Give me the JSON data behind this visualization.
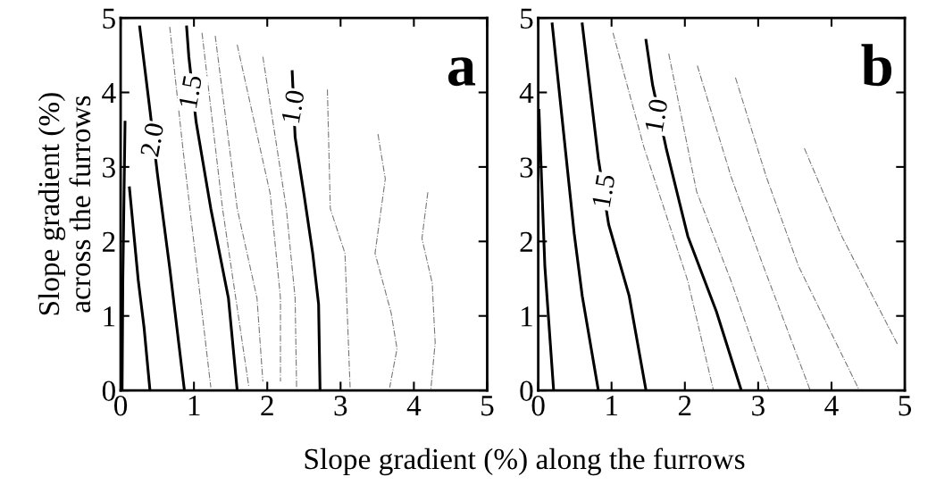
{
  "chart_data": [
    {
      "type": "line",
      "xlabel": "Slope gradient (%) along the furrows",
      "ylabel": "Slope gradient (%)\nacross the furrows",
      "xlim": [
        0,
        5
      ],
      "ylim": [
        0,
        5
      ],
      "xticks": [
        0,
        1,
        2,
        3,
        4,
        5
      ],
      "yticks": [
        0,
        1,
        2,
        3,
        4,
        5
      ],
      "grid": false,
      "legend": false,
      "annotations": [
        {
          "text": "2.0",
          "x": 0.46,
          "y": 3.36
        },
        {
          "text": "1.5",
          "x": 0.98,
          "y": 4.0
        },
        {
          "text": "1.0",
          "x": 2.38,
          "y": 3.8
        },
        "a"
      ],
      "series": [
        {
          "color": "#000000",
          "line_style": "solid",
          "x": [
            0.06,
            0.03,
            0.02
          ],
          "values": [
            3.6,
            1.5,
            0
          ]
        },
        {
          "color": "#000000",
          "line_style": "solid",
          "x": [
            0.12,
            0.24,
            0.32,
            0.4
          ],
          "values": [
            2.72,
            1.48,
            0.84,
            0
          ]
        },
        {
          "color": "#000000",
          "line_style": "solid",
          "x": [
            0.26,
            0.4,
            0.5,
            0.67,
            0.87
          ],
          "values": [
            4.88,
            3.76,
            2.92,
            1.64,
            0
          ]
        },
        {
          "color": "#777777",
          "line_style": "dashed",
          "x": [
            0.67,
            0.85,
            1.23
          ],
          "values": [
            4.88,
            3.24,
            0.04
          ]
        },
        {
          "color": "#777777",
          "line_style": "dashed",
          "x": [
            1.11,
            1.39,
            1.75
          ],
          "values": [
            4.8,
            2.44,
            0.04
          ]
        },
        {
          "color": "#000000",
          "line_style": "solid",
          "x": [
            0.9,
            0.93,
            1.03,
            1.23,
            1.47,
            1.59
          ],
          "values": [
            4.88,
            4.48,
            3.6,
            2.44,
            1.24,
            0
          ]
        },
        {
          "color": "#777777",
          "line_style": "dashed",
          "x": [
            1.29,
            1.59,
            1.86,
            1.94
          ],
          "values": [
            4.76,
            2.44,
            1.24,
            0.12
          ]
        },
        {
          "color": "#777777",
          "line_style": "dashed",
          "x": [
            1.59,
            2.04,
            2.18,
            2.18
          ],
          "values": [
            4.64,
            2.64,
            1.24,
            0.12
          ]
        },
        {
          "color": "#777777",
          "line_style": "dashed",
          "x": [
            1.94,
            2.26,
            2.38,
            2.4
          ],
          "values": [
            4.48,
            2.44,
            1.24,
            0.04
          ]
        },
        {
          "color": "#000000",
          "line_style": "solid",
          "x": [
            2.34,
            2.38,
            2.5,
            2.62,
            2.7,
            2.72
          ],
          "values": [
            4.28,
            3.4,
            2.64,
            1.84,
            1.16,
            0
          ]
        },
        {
          "color": "#777777",
          "line_style": "dashed",
          "x": [
            2.82,
            2.86,
            3.06,
            3.13
          ],
          "values": [
            4.04,
            2.44,
            1.84,
            0.04
          ]
        },
        {
          "color": "#777777",
          "line_style": "dashed",
          "x": [
            3.51,
            3.61,
            3.47,
            3.69,
            3.77,
            3.67
          ],
          "values": [
            3.44,
            2.84,
            1.84,
            1.04,
            0.56,
            0.04
          ]
        },
        {
          "color": "#777777",
          "line_style": "dashed",
          "x": [
            4.19,
            4.11,
            4.25,
            4.29,
            4.23
          ],
          "values": [
            2.66,
            2.04,
            1.44,
            0.64,
            0
          ]
        }
      ]
    },
    {
      "type": "line",
      "xlim": [
        0,
        5
      ],
      "ylim": [
        0,
        5
      ],
      "xticks": [
        0,
        1,
        2,
        3,
        4,
        5
      ],
      "yticks": [
        0,
        1,
        2,
        3,
        4,
        5
      ],
      "grid": false,
      "legend": false,
      "annotations": [
        {
          "text": "1.5",
          "x": 0.92,
          "y": 2.67
        },
        {
          "text": "1.0",
          "x": 1.64,
          "y": 3.68
        },
        "b"
      ],
      "series": [
        {
          "color": "#000000",
          "line_style": "solid",
          "x": [
            0.01,
            0.09,
            0.21
          ],
          "values": [
            3.76,
            1.67,
            0
          ]
        },
        {
          "color": "#000000",
          "line_style": "solid",
          "x": [
            0.19,
            0.49,
            0.6,
            0.82
          ],
          "values": [
            4.92,
            2.11,
            1.27,
            0
          ]
        },
        {
          "color": "#000000",
          "line_style": "solid",
          "x": [
            0.6,
            0.82,
            0.96,
            1.24,
            1.47
          ],
          "values": [
            4.92,
            3.11,
            2.23,
            1.27,
            0
          ]
        },
        {
          "color": "#777777",
          "line_style": "dashed",
          "x": [
            1.02,
            1.44,
            2.04,
            2.39
          ],
          "values": [
            4.8,
            3.27,
            1.47,
            0
          ]
        },
        {
          "color": "#000000",
          "line_style": "solid",
          "x": [
            1.47,
            1.56,
            1.75,
            2.04,
            2.43,
            2.77
          ],
          "values": [
            4.7,
            4.1,
            3.23,
            2.07,
            1.06,
            0
          ]
        },
        {
          "color": "#777777",
          "line_style": "dashed",
          "x": [
            1.78,
            2.16,
            2.63,
            3.15
          ],
          "values": [
            4.52,
            2.67,
            1.47,
            0
          ]
        },
        {
          "color": "#777777",
          "line_style": "dashed",
          "x": [
            2.17,
            2.63,
            3.07,
            3.71
          ],
          "values": [
            4.36,
            2.87,
            1.67,
            0
          ]
        },
        {
          "color": "#777777",
          "line_style": "dashed",
          "x": [
            2.69,
            3.11,
            3.55,
            4.38
          ],
          "values": [
            4.2,
            2.87,
            1.67,
            0
          ]
        },
        {
          "color": "#777777",
          "line_style": "dashed",
          "x": [
            3.63,
            4.14,
            4.9
          ],
          "values": [
            3.25,
            2.07,
            0.62
          ]
        }
      ]
    }
  ]
}
